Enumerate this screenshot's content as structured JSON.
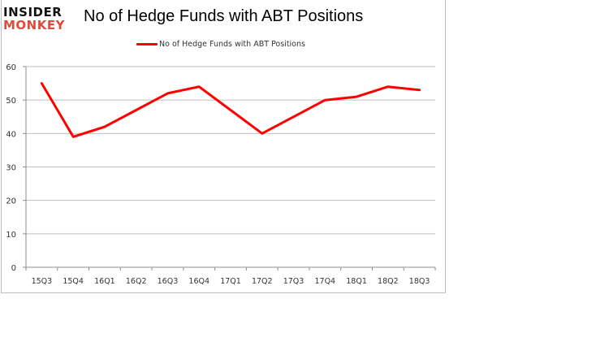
{
  "branding": {
    "logo_line1": "INSIDER",
    "logo_line2": "MONKEY"
  },
  "chart_data": {
    "type": "line",
    "title": "No of Hedge Funds with ABT Positions",
    "xlabel": "",
    "ylabel": "",
    "categories": [
      "15Q3",
      "15Q4",
      "16Q1",
      "16Q2",
      "16Q3",
      "16Q4",
      "17Q1",
      "17Q2",
      "17Q3",
      "17Q4",
      "18Q1",
      "18Q2",
      "18Q3"
    ],
    "series": [
      {
        "name": "No of Hedge Funds with ABT Positions",
        "color": "#ff0000",
        "values": [
          55,
          39,
          42,
          47,
          52,
          54,
          47,
          40,
          45,
          50,
          51,
          54,
          53
        ]
      }
    ],
    "ylim": [
      0,
      60
    ],
    "yticks": [
      0,
      10,
      20,
      30,
      40,
      50,
      60
    ],
    "grid": true,
    "legend_position": "top"
  },
  "colors": {
    "line": "#ff0000",
    "grid": "#bfbfbf",
    "axis": "#8c8c8c",
    "logo_dark": "#111111",
    "logo_red": "#e04a3a"
  }
}
